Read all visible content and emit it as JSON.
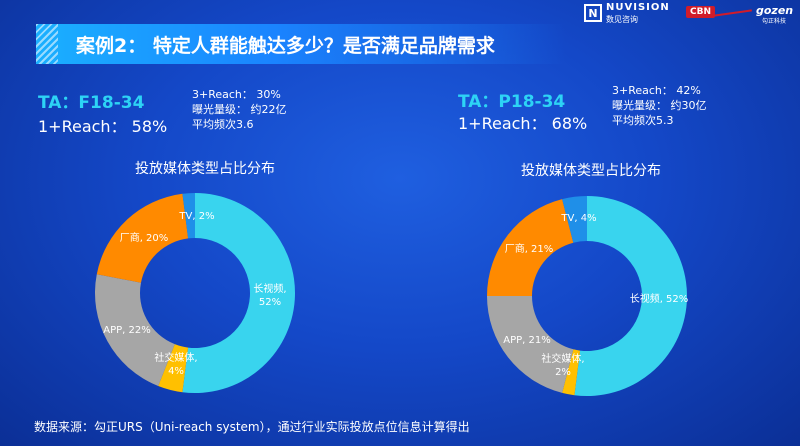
{
  "header": {
    "title": "案例2： 特定人群能触达多少？是否满足品牌需求",
    "logos": {
      "nuvision_mark": "N",
      "nuvision_name": "NUVISION",
      "nuvision_sub": "数见咨询",
      "cbn": "CBN",
      "gozen": "gozen",
      "gozen_sub": "勾正科技"
    }
  },
  "panels": [
    {
      "ta": "TA：F18-34",
      "reach1": "1+Reach： 58%",
      "stats": [
        "3+Reach： 30%",
        "曝光量级： 约22亿",
        "平均频次3.6"
      ]
    },
    {
      "ta": "TA：P18-34",
      "reach1": "1+Reach： 68%",
      "stats": [
        "3+Reach： 42%",
        "曝光量级： 约30亿",
        "平均频次5.3"
      ]
    }
  ],
  "colors": {
    "long_video": "#39d4ee",
    "social": "#ffc000",
    "app": "#a6a6a6",
    "vendor": "#ff8a00",
    "tv": "#1f8fe8"
  },
  "chart_data": [
    {
      "type": "pie",
      "title": "投放媒体类型占比分布",
      "slices": [
        {
          "label": "长视频",
          "value": 52,
          "text": "长视频,\n52%",
          "color": "#39d4ee"
        },
        {
          "label": "社交媒体",
          "value": 4,
          "text": "社交媒体,\n4%",
          "color": "#ffc000"
        },
        {
          "label": "APP",
          "value": 22,
          "text": "APP, 22%",
          "color": "#a6a6a6"
        },
        {
          "label": "厂商",
          "value": 20,
          "text": "厂商, 20%",
          "color": "#ff8a00"
        },
        {
          "label": "TV",
          "value": 2,
          "text": "TV, 2%",
          "color": "#1f8fe8"
        }
      ]
    },
    {
      "type": "pie",
      "title": "投放媒体类型占比分布",
      "slices": [
        {
          "label": "长视频",
          "value": 52,
          "text": "长视频, 52%",
          "color": "#39d4ee"
        },
        {
          "label": "社交媒体",
          "value": 2,
          "text": "社交媒体,\n2%",
          "color": "#ffc000"
        },
        {
          "label": "APP",
          "value": 21,
          "text": "APP, 21%",
          "color": "#a6a6a6"
        },
        {
          "label": "厂商",
          "value": 21,
          "text": "厂商, 21%",
          "color": "#ff8a00"
        },
        {
          "label": "TV",
          "value": 4,
          "text": "TV, 4%",
          "color": "#1f8fe8"
        }
      ]
    }
  ],
  "footer": "数据来源：勾正URS（Uni-reach system），通过行业实际投放点位信息计算得出"
}
